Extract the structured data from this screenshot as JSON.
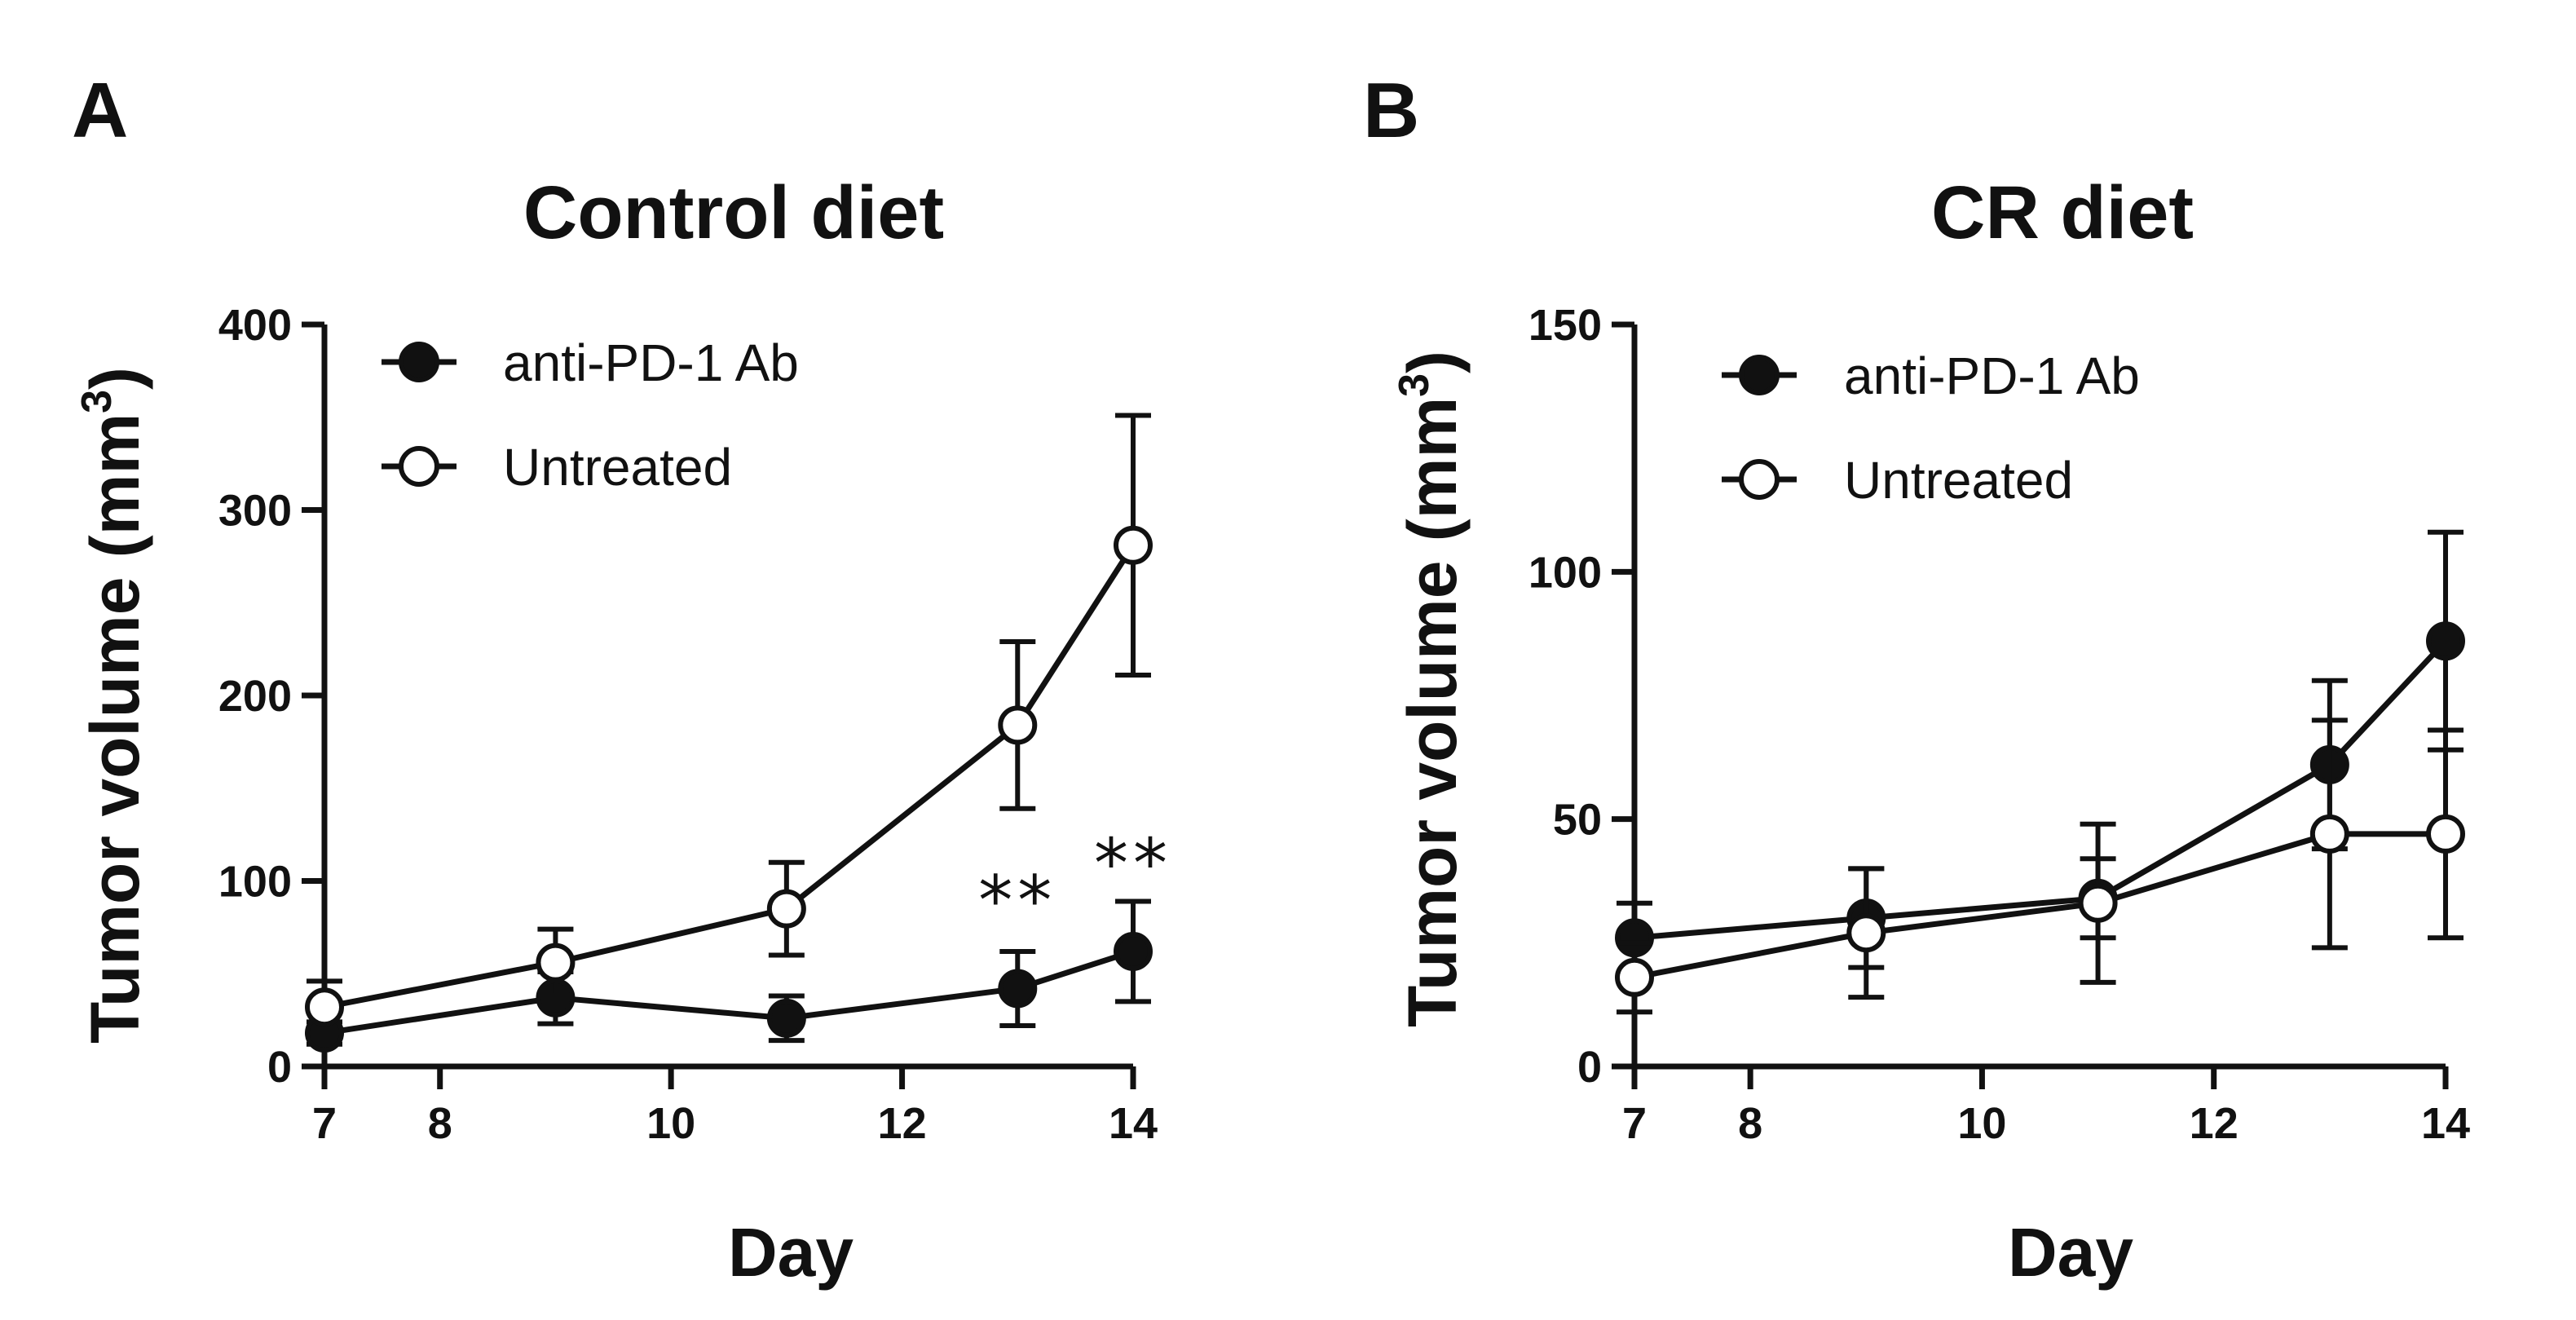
{
  "chart_data": [
    {
      "type": "line",
      "panel": "A",
      "title": "Control diet",
      "xlabel": "Day",
      "ylabel": "Tumor volume (mm",
      "ylabel_sup": "3",
      "ylabel_close": ")",
      "xlim": [
        7,
        14
      ],
      "ylim": [
        0,
        400
      ],
      "xticks": [
        7,
        8,
        10,
        12,
        14
      ],
      "yticks": [
        0,
        100,
        200,
        300,
        400
      ],
      "series": [
        {
          "name": "anti-PD-1 Ab",
          "marker": "filled",
          "x": [
            7,
            9,
            11,
            13,
            14
          ],
          "y": [
            18,
            37,
            26,
            42,
            62
          ],
          "err": [
            6,
            14,
            12,
            20,
            27
          ]
        },
        {
          "name": "Untreated",
          "marker": "open",
          "x": [
            7,
            9,
            11,
            13,
            14
          ],
          "y": [
            32,
            56,
            85,
            184,
            281
          ],
          "err": [
            14,
            18,
            25,
            45,
            70
          ]
        }
      ],
      "annotations": [
        {
          "text": "**",
          "x": 13,
          "y": 90
        },
        {
          "text": "**",
          "x": 14,
          "y": 110
        }
      ]
    },
    {
      "type": "line",
      "panel": "B",
      "title": "CR diet",
      "xlabel": "Day",
      "ylabel": "Tumor volume (mm",
      "ylabel_sup": "3",
      "ylabel_close": ")",
      "xlim": [
        7,
        14
      ],
      "ylim": [
        0,
        150
      ],
      "xticks": [
        7,
        8,
        10,
        12,
        14
      ],
      "yticks": [
        0,
        50,
        100,
        150
      ],
      "series": [
        {
          "name": "anti-PD-1 Ab",
          "marker": "filled",
          "x": [
            7,
            9,
            11,
            13,
            14
          ],
          "y": [
            26,
            30,
            34,
            61,
            86
          ],
          "err": [
            7,
            10,
            8,
            17,
            22
          ]
        },
        {
          "name": "Untreated",
          "marker": "open",
          "x": [
            7,
            9,
            11,
            13,
            14
          ],
          "y": [
            18,
            27,
            33,
            47,
            47
          ],
          "err": [
            7,
            13,
            16,
            23,
            21
          ]
        }
      ],
      "annotations": []
    }
  ]
}
